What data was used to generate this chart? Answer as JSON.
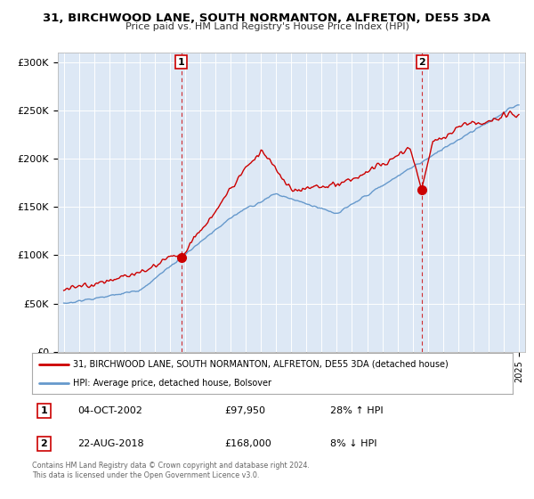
{
  "title": "31, BIRCHWOOD LANE, SOUTH NORMANTON, ALFRETON, DE55 3DA",
  "subtitle": "Price paid vs. HM Land Registry's House Price Index (HPI)",
  "legend_line1": "31, BIRCHWOOD LANE, SOUTH NORMANTON, ALFRETON, DE55 3DA (detached house)",
  "legend_line2": "HPI: Average price, detached house, Bolsover",
  "sale1_date": "04-OCT-2002",
  "sale1_price": "£97,950",
  "sale1_hpi": "28% ↑ HPI",
  "sale2_date": "22-AUG-2018",
  "sale2_price": "£168,000",
  "sale2_hpi": "8% ↓ HPI",
  "footer1": "Contains HM Land Registry data © Crown copyright and database right 2024.",
  "footer2": "This data is licensed under the Open Government Licence v3.0.",
  "red_color": "#cc0000",
  "blue_color": "#6699cc",
  "sale1_year": 2002.75,
  "sale1_value": 97950,
  "sale2_year": 2018.62,
  "sale2_value": 168000,
  "ylim_min": 0,
  "ylim_max": 310000,
  "yticks": [
    0,
    50000,
    100000,
    150000,
    200000,
    250000,
    300000
  ],
  "ytick_labels": [
    "£0",
    "£50K",
    "£100K",
    "£150K",
    "£200K",
    "£250K",
    "£300K"
  ],
  "xlim_start": 1994.6,
  "xlim_end": 2025.4,
  "bg_color": "#f5f5f5",
  "plot_bg": "#dde8f5"
}
